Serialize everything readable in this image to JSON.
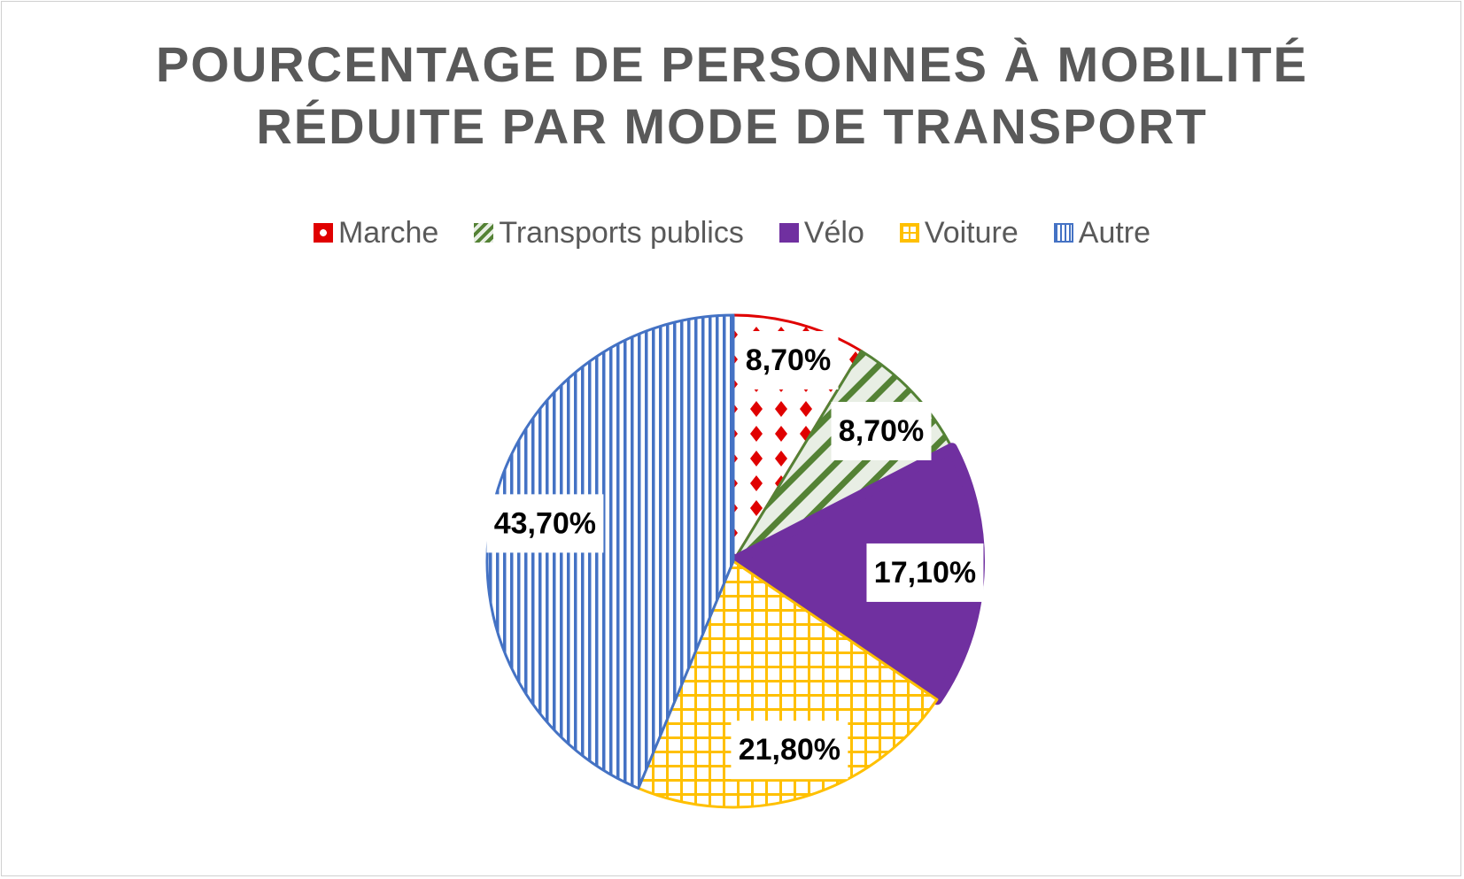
{
  "chart_data": {
    "type": "pie",
    "title_lines": [
      "POURCENTAGE DE PERSONNES À MOBILITÉ",
      "RÉDUITE PAR MODE DE TRANSPORT"
    ],
    "legend_position": "top",
    "categories": [
      "Marche",
      "Transports publics",
      "Vélo",
      "Voiture",
      "Autre"
    ],
    "values": [
      8.7,
      8.7,
      17.1,
      21.8,
      43.7
    ],
    "data_labels": [
      "8,70%",
      "8,70%",
      "17,10%",
      "21,80%",
      "43,70%"
    ],
    "colors": [
      "#e00000",
      "#548235",
      "#7030a0",
      "#ffc000",
      "#4472c4"
    ],
    "patterns": [
      "diamond-dots",
      "diagonal-stripes",
      "solid",
      "grid",
      "vertical-lines"
    ]
  }
}
